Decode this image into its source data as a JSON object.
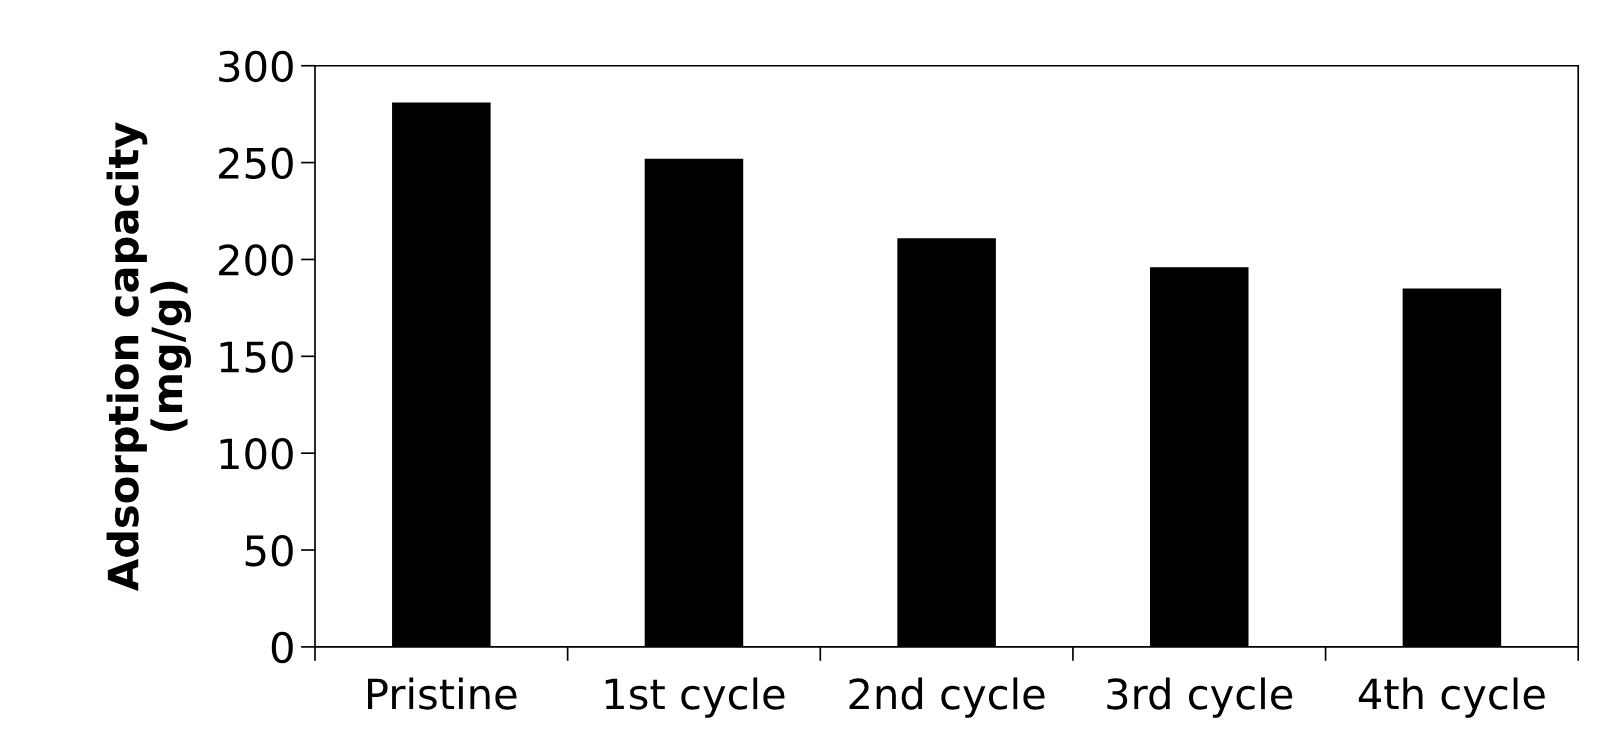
{
  "chart_data": {
    "type": "bar",
    "ylabel": "Adsorption capacity\n(mg/g)",
    "categories": [
      "Pristine",
      "1st cycle",
      "2nd cycle",
      "3rd cycle",
      "4th cycle"
    ],
    "values": [
      281,
      252,
      211,
      196,
      185
    ],
    "color": "#000000",
    "ylim": [
      0,
      300
    ],
    "yticks": [
      0,
      50,
      100,
      150,
      200,
      250,
      300
    ],
    "grid": false
  }
}
